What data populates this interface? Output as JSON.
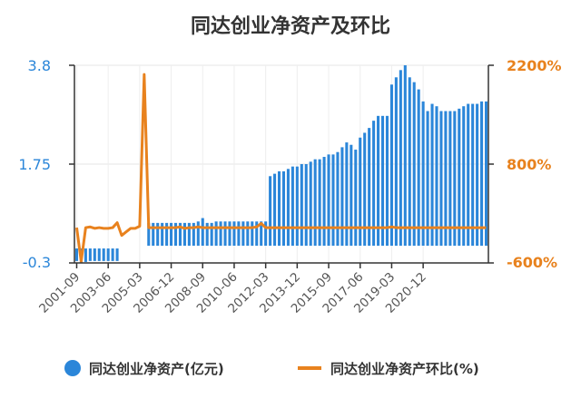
{
  "chart_data": {
    "type": "bar+line",
    "title": "同达创业净资产及环比",
    "x_tick_labels": [
      "2001-09",
      "2003-06",
      "2005-03",
      "2006-12",
      "2008-09",
      "2010-06",
      "2012-03",
      "2013-12",
      "2015-09",
      "2017-06",
      "2019-03",
      "2020-12"
    ],
    "left_axis": {
      "ticks": [
        "3.8",
        "1.75",
        "-0.3"
      ],
      "ylim": [
        -0.3,
        3.8
      ],
      "color": "#2b86d9"
    },
    "right_axis": {
      "ticks": [
        "2200%",
        "800%",
        "-600%"
      ],
      "ylim": [
        -600,
        2200
      ],
      "color": "#e8821e"
    },
    "legend": [
      "同达创业净资产(亿元)",
      "同达创业净资产环比(%)"
    ],
    "series": [
      {
        "name": "同达创业净资产(亿元)",
        "kind": "bar",
        "color": "#2b86d9",
        "values": [
          -0.26,
          -0.29,
          -0.28,
          -0.26,
          -0.26,
          -0.26,
          -0.26,
          -0.26,
          -0.26,
          -0.26,
          null,
          null,
          null,
          null,
          null,
          null,
          0.53,
          0.53,
          0.53,
          0.53,
          0.53,
          0.53,
          0.53,
          0.53,
          0.53,
          0.53,
          0.53,
          0.56,
          0.63,
          0.53,
          0.53,
          0.56,
          0.56,
          0.56,
          0.56,
          0.56,
          0.56,
          0.56,
          0.56,
          0.56,
          0.56,
          0.56,
          0.56,
          1.5,
          1.55,
          1.6,
          1.6,
          1.65,
          1.7,
          1.7,
          1.75,
          1.75,
          1.8,
          1.85,
          1.85,
          1.9,
          1.95,
          1.95,
          2.0,
          2.1,
          2.2,
          2.15,
          2.05,
          2.3,
          2.4,
          2.5,
          2.65,
          2.75,
          2.75,
          2.75,
          3.4,
          3.55,
          3.7,
          3.8,
          3.55,
          3.45,
          3.3,
          3.05,
          2.85,
          3.0,
          2.95,
          2.85,
          2.85,
          2.85,
          2.85,
          2.9,
          2.95,
          3.0,
          3.0,
          3.0,
          3.05,
          3.05
        ]
      },
      {
        "name": "同达创业净资产环比(%)",
        "kind": "line",
        "color": "#e8821e",
        "values": [
          -100,
          -580,
          -100,
          -90,
          -110,
          -100,
          -110,
          -110,
          -100,
          -30,
          -210,
          -160,
          -110,
          -110,
          -80,
          2070,
          -100,
          -100,
          -100,
          -100,
          -100,
          -100,
          -100,
          -90,
          -110,
          -100,
          -100,
          -90,
          -100,
          -100,
          -100,
          -100,
          -100,
          -100,
          -100,
          -100,
          -100,
          -100,
          -100,
          -100,
          -90,
          -40,
          -100,
          -100,
          -100,
          -100,
          -100,
          -100,
          -100,
          -100,
          -100,
          -100,
          -100,
          -100,
          -100,
          -100,
          -100,
          -100,
          -100,
          -100,
          -100,
          -100,
          -100,
          -100,
          -100,
          -100,
          -100,
          -100,
          -100,
          -100,
          -90,
          -100,
          -100,
          -100,
          -100,
          -100,
          -100,
          -100,
          -100,
          -100,
          -100,
          -100,
          -100,
          -100,
          -100,
          -100,
          -100,
          -100,
          -100,
          -100,
          -100,
          -100
        ]
      }
    ]
  }
}
